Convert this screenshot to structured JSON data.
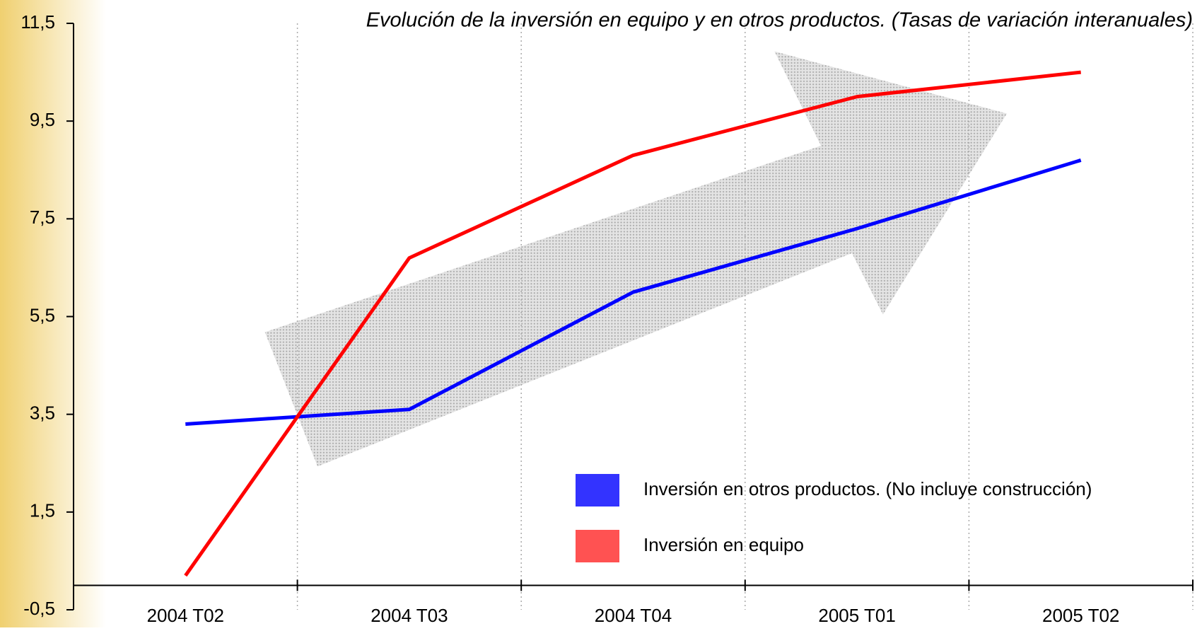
{
  "chart_data": {
    "type": "line",
    "title": "Evolución de la inversión en equipo y en otros productos. (Tasas de variación interanuales)",
    "categories": [
      "2004 T02",
      "2004 T03",
      "2004 T04",
      "2005 T01",
      "2005 T02"
    ],
    "series": [
      {
        "name": "Inversión en otros productos. (No incluye construcción)",
        "color": "#0000ff",
        "values": [
          3.3,
          3.6,
          6.0,
          7.3,
          8.7
        ]
      },
      {
        "name": "Inversión en equipo",
        "color": "#ff0000",
        "values": [
          0.2,
          6.7,
          8.8,
          10.0,
          10.5
        ]
      }
    ],
    "ylim": [
      -0.5,
      11.5
    ],
    "yticks": [
      {
        "value": -0.5,
        "label": "-0,5"
      },
      {
        "value": 1.5,
        "label": "1,5"
      },
      {
        "value": 3.5,
        "label": "3,5"
      },
      {
        "value": 5.5,
        "label": "5,5"
      },
      {
        "value": 7.5,
        "label": "7,5"
      },
      {
        "value": 9.5,
        "label": "9,5"
      },
      {
        "value": 11.5,
        "label": "11,5"
      }
    ]
  }
}
